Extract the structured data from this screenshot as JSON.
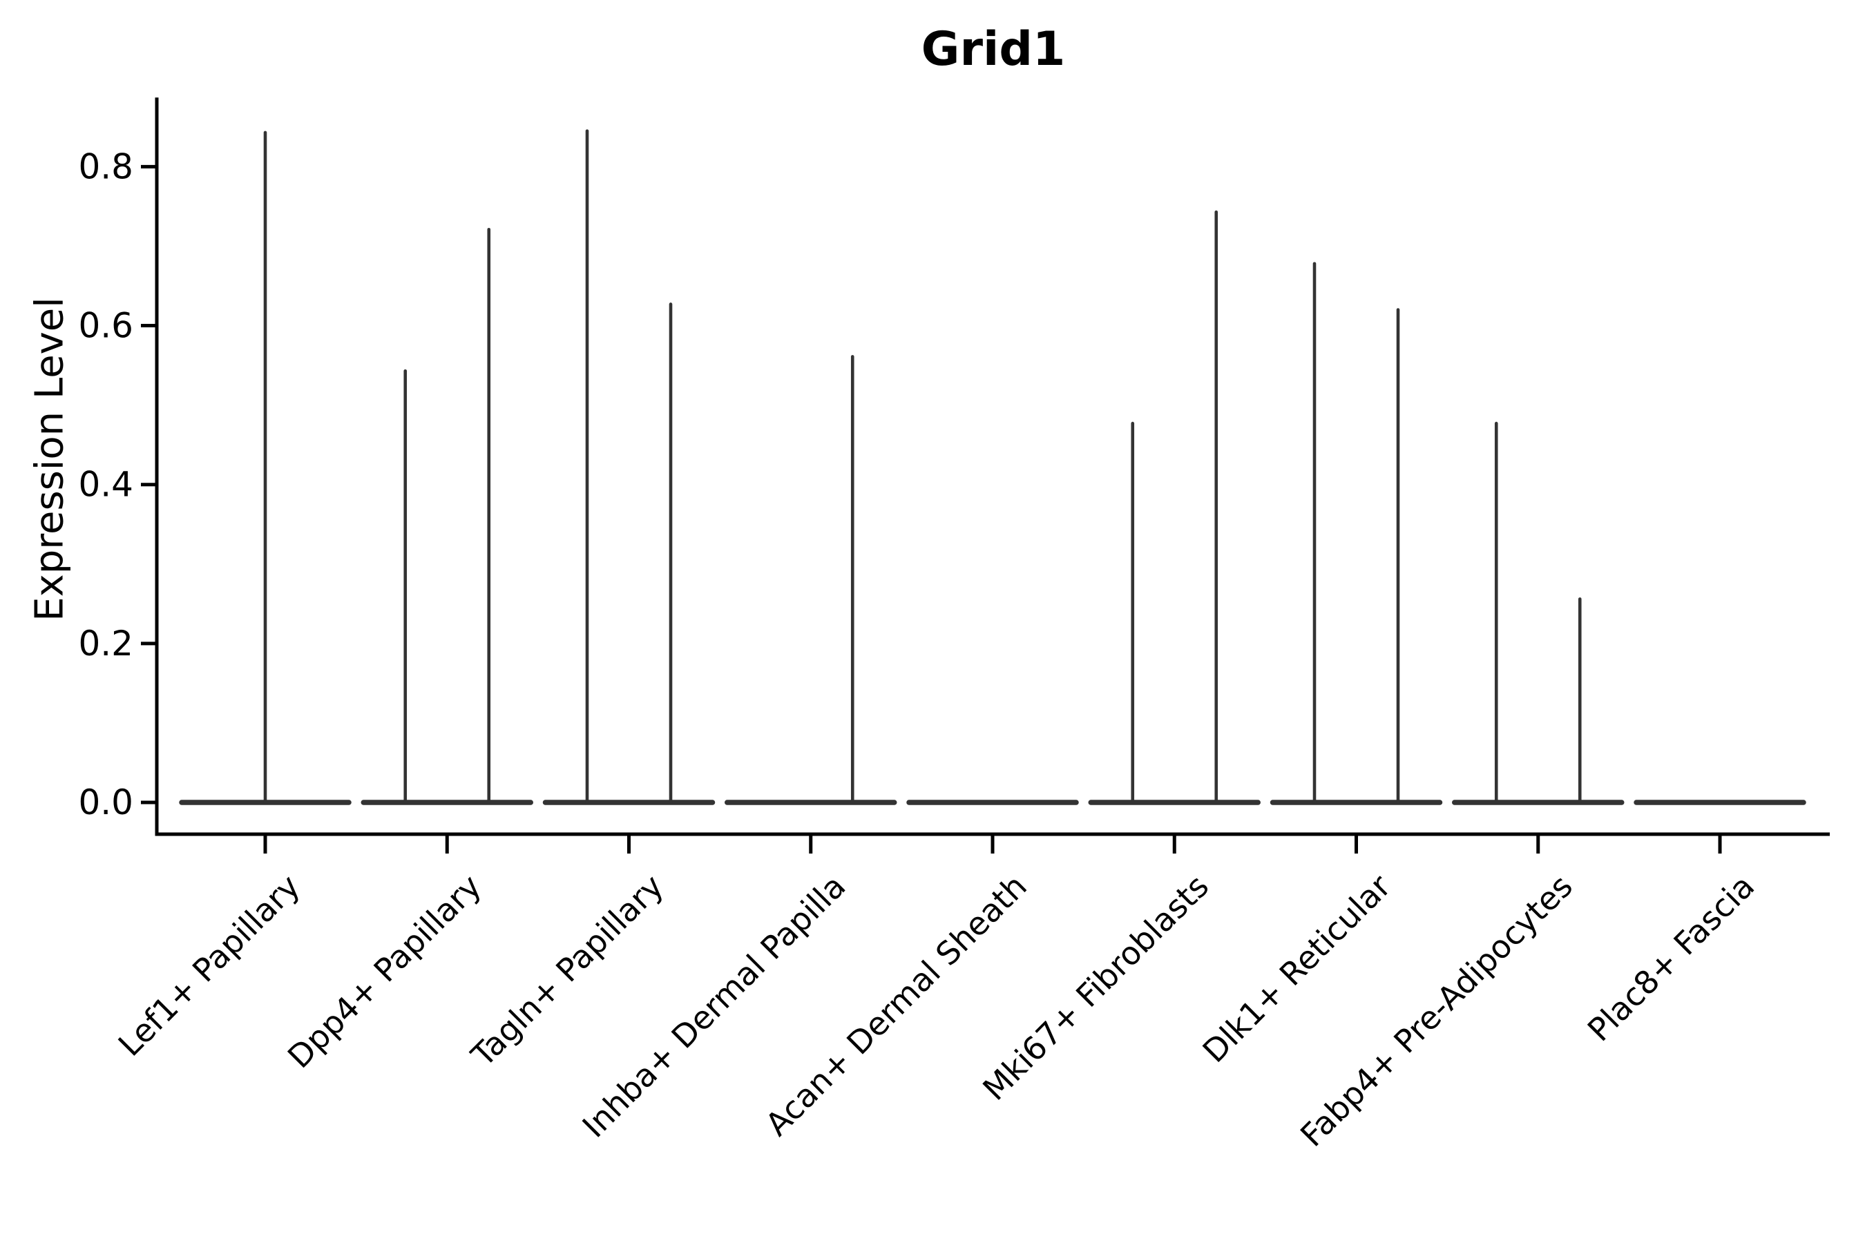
{
  "chart_data": {
    "type": "violin",
    "title": "Grid1",
    "ylabel": "Expression Level",
    "xlabel": "",
    "grid": false,
    "legend": "none",
    "ylim": [
      -0.04,
      0.887
    ],
    "yticks": [
      {
        "label": "0.0",
        "value": 0.0
      },
      {
        "label": "0.2",
        "value": 0.2
      },
      {
        "label": "0.4",
        "value": 0.4
      },
      {
        "label": "0.6",
        "value": 0.6
      },
      {
        "label": "0.8",
        "value": 0.8
      }
    ],
    "categories": [
      "Lef1+ Papillary",
      "Dpp4+ Papillary",
      "Tagln+ Papillary",
      "Inhba+ Dermal Papilla",
      "Acan+ Dermal Sheath",
      "Mki67+ Fibroblasts",
      "Dlk1+ Reticular",
      "Fabp4+ Pre-Adipocytes",
      "Plac8+ Fascia"
    ],
    "groups": [
      {
        "label": "Lef1+ Papillary",
        "baseline_value": 0.0,
        "spikes": [
          {
            "pos": 0.0,
            "max": 0.843
          }
        ]
      },
      {
        "label": "Dpp4+ Papillary",
        "baseline_value": 0.0,
        "spikes": [
          {
            "pos": -0.25,
            "max": 0.543
          },
          {
            "pos": 0.25,
            "max": 0.721
          }
        ]
      },
      {
        "label": "Tagln+ Papillary",
        "baseline_value": 0.0,
        "spikes": [
          {
            "pos": -0.25,
            "max": 0.845
          },
          {
            "pos": 0.25,
            "max": 0.627
          }
        ]
      },
      {
        "label": "Inhba+ Dermal Papilla",
        "baseline_value": 0.0,
        "spikes": [
          {
            "pos": 0.25,
            "max": 0.561
          }
        ]
      },
      {
        "label": "Acan+ Dermal Sheath",
        "baseline_value": 0.0,
        "spikes": []
      },
      {
        "label": "Mki67+ Fibroblasts",
        "baseline_value": 0.0,
        "spikes": [
          {
            "pos": -0.25,
            "max": 0.477
          },
          {
            "pos": 0.25,
            "max": 0.743
          }
        ]
      },
      {
        "label": "Dlk1+ Reticular",
        "baseline_value": 0.0,
        "spikes": [
          {
            "pos": -0.25,
            "max": 0.678
          },
          {
            "pos": 0.25,
            "max": 0.62
          }
        ]
      },
      {
        "label": "Fabp4+ Pre-Adipocytes",
        "baseline_value": 0.0,
        "spikes": [
          {
            "pos": -0.25,
            "max": 0.477
          },
          {
            "pos": 0.25,
            "max": 0.256
          }
        ]
      },
      {
        "label": "Plac8+ Fascia",
        "baseline_value": 0.0,
        "spikes": []
      }
    ],
    "colors": {
      "violin_line": "#333333",
      "axis": "#000000",
      "text": "#000000",
      "background": "#ffffff"
    }
  }
}
